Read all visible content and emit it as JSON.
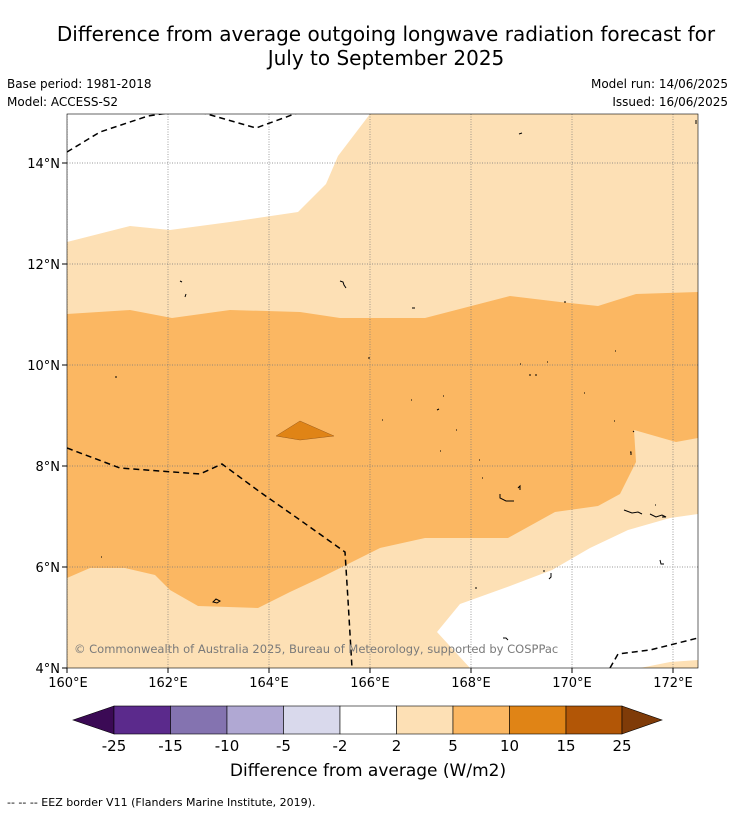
{
  "title_line1": "Difference from average outgoing longwave radiation forecast for",
  "title_line2": "July to September 2025",
  "base_period": "Base period: 1981-2018",
  "model": "Model: ACCESS-S2",
  "model_run": "Model run: 14/06/2025",
  "issued": "Issued: 16/06/2025",
  "copyright": "© Commonwealth of Australia 2025, Bureau of Meteorology, supported by COSPPac",
  "lat_labels": [
    "14°N",
    "12°N",
    "10°N",
    "8°N",
    "6°N",
    "4°N"
  ],
  "lon_labels": [
    "160°E",
    "162°E",
    "164°E",
    "166°E",
    "168°E",
    "170°E",
    "172°E"
  ],
  "colorbar": {
    "title": "Difference from average (W/m2)",
    "tick_labels": [
      "-25",
      "-15",
      "-10",
      "-5",
      "-2",
      "2",
      "5",
      "10",
      "15",
      "25"
    ],
    "colors": [
      "#3b0a55",
      "#5b2a8c",
      "#8473b0",
      "#b0a8d3",
      "#d9d9ec",
      "#ffffff",
      "#fde0b5",
      "#fbb762",
      "#e08416",
      "#b25606",
      "#7f3b08"
    ]
  },
  "legend_note": "--  --  -- EEZ border V11 (Flanders Marine Institute, 2019)."
}
